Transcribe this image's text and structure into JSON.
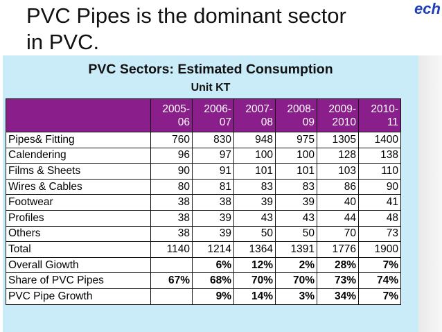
{
  "slide": {
    "title_line1": "PVC Pipes is the dominant sector",
    "title_line2": "in PVC.",
    "logo_text": "ech"
  },
  "table": {
    "heading": "PVC Sectors: Estimated Consumption",
    "unit": "Unit KT",
    "header_corner": "",
    "years": [
      {
        "top": "2005-",
        "bottom": "06"
      },
      {
        "top": "2006-",
        "bottom": "07"
      },
      {
        "top": "2007-",
        "bottom": "08"
      },
      {
        "top": "2008-",
        "bottom": "09"
      },
      {
        "top": "2009-",
        "bottom": "2010"
      },
      {
        "top": "2010-",
        "bottom": "11"
      }
    ],
    "rows": [
      {
        "label": "Pipes& Fitting",
        "values": [
          "760",
          "830",
          "948",
          "975",
          "1305",
          "1400"
        ]
      },
      {
        "label": "Calendering",
        "values": [
          "96",
          "97",
          "100",
          "100",
          "128",
          "138"
        ]
      },
      {
        "label": "Films & Sheets",
        "values": [
          "90",
          "91",
          "101",
          "101",
          "103",
          "110"
        ]
      },
      {
        "label": "Wires & Cables",
        "values": [
          "80",
          "81",
          "83",
          "83",
          "86",
          "90"
        ]
      },
      {
        "label": "Footwear",
        "values": [
          "38",
          "38",
          "39",
          "39",
          "40",
          "41"
        ]
      },
      {
        "label": "Profiles",
        "values": [
          "38",
          "39",
          "43",
          "43",
          "44",
          "48"
        ]
      },
      {
        "label": "Others",
        "values": [
          "38",
          "39",
          "50",
          "50",
          "70",
          "73"
        ]
      },
      {
        "label": "Total",
        "values": [
          "1140",
          "1214",
          "1364",
          "1391",
          "1776",
          "1900"
        ]
      },
      {
        "label": "Overall Giowth",
        "values": [
          "",
          "6%",
          "12%",
          "2%",
          "28%",
          "7%"
        ]
      },
      {
        "label": "Share of PVC Pipes",
        "values": [
          "67%",
          "68%",
          "70%",
          "70%",
          "73%",
          "74%"
        ]
      },
      {
        "label": "PVC Pipe Growth",
        "values": [
          "",
          "9%",
          "14%",
          "3%",
          "34%",
          "7%"
        ]
      }
    ]
  }
}
